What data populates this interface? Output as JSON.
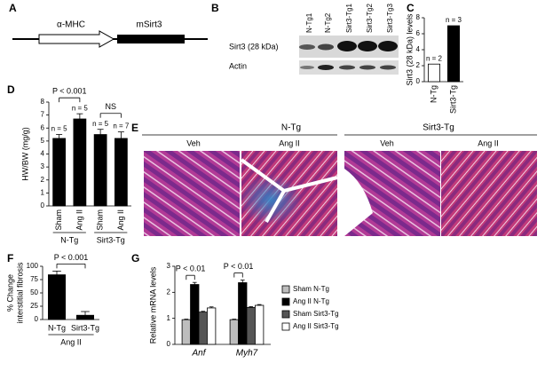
{
  "panel_labels": [
    "A",
    "B",
    "C",
    "D",
    "E",
    "F",
    "G"
  ],
  "construct": {
    "promoter": "α-MHC",
    "gene": "mSirt3"
  },
  "blot": {
    "lanes": [
      "N-Tg1",
      "N-Tg2",
      "Sirt3-Tg1",
      "Sirt3-Tg2",
      "Sirt3-Tg3"
    ],
    "bands": [
      "Sirt3 (28 kDa)",
      "Actin"
    ]
  },
  "histology": {
    "groups": [
      "N-Tg",
      "Sirt3-Tg"
    ],
    "treatments": [
      "Veh",
      "Ang II",
      "Veh",
      "Ang II"
    ]
  },
  "chart_data": [
    {
      "type": "bar",
      "ylabel": "Sirt3 (28 kDa) levels",
      "categories": [
        "N-Tg",
        "Sirt3-Tg"
      ],
      "values": [
        2.2,
        7
      ],
      "colors": [
        "#ffffff",
        "#000000"
      ],
      "bar_labels": [
        "n = 2",
        "n = 3"
      ],
      "ylim": [
        0,
        8
      ],
      "yticks": [
        0,
        2,
        4,
        6,
        8
      ]
    },
    {
      "type": "bar",
      "ylabel": "HW/BW (mg/g)",
      "categories": [
        "Sham",
        "Ang II",
        "Sham",
        "Ang II"
      ],
      "values": [
        5.2,
        6.7,
        5.5,
        5.2
      ],
      "errors": [
        0.3,
        0.4,
        0.4,
        0.5
      ],
      "color": "#000000",
      "bar_labels": [
        "n = 5",
        "n = 5",
        "n = 5",
        "n = 7"
      ],
      "group_labels": [
        "N-Tg",
        "Sirt3-Tg"
      ],
      "annotations": [
        "P < 0.001",
        "NS"
      ],
      "ylim": [
        0,
        8
      ],
      "yticks": [
        0,
        1,
        2,
        3,
        4,
        5,
        6,
        7,
        8
      ]
    },
    {
      "type": "bar",
      "ylabel": [
        "% Change",
        "interstitial fibrosis"
      ],
      "categories": [
        "N-Tg",
        "Sirt3-Tg"
      ],
      "values": [
        84,
        8
      ],
      "errors": [
        7,
        7
      ],
      "color": "#000000",
      "group_labels": [
        "Ang II"
      ],
      "annotations": [
        "P < 0.001"
      ],
      "ylim": [
        0,
        100
      ],
      "yticks": [
        0,
        25,
        50,
        75,
        100
      ]
    },
    {
      "type": "bar",
      "ylabel": "Relative mRNA levels",
      "categories": [
        "Anf",
        "Myh7"
      ],
      "annotations": [
        "P < 0.01",
        "P < 0.01"
      ],
      "series": [
        {
          "name": "Sham N-Tg",
          "color": "#bdbdbd",
          "values": [
            0.95,
            0.95
          ],
          "errors": [
            0.02,
            0.02
          ]
        },
        {
          "name": "Ang II N-Tg",
          "color": "#000000",
          "values": [
            2.3,
            2.37
          ],
          "errors": [
            0.08,
            0.1
          ]
        },
        {
          "name": "Sham Sirt3-Tg",
          "color": "#555555",
          "values": [
            1.24,
            1.42
          ],
          "errors": [
            0.03,
            0.03
          ]
        },
        {
          "name": "Ang II Sirt3-Tg",
          "color": "#ffffff",
          "values": [
            1.4,
            1.5
          ],
          "errors": [
            0.04,
            0.03
          ]
        }
      ],
      "ylim": [
        0,
        3
      ],
      "yticks": [
        0,
        1,
        2,
        3
      ]
    }
  ]
}
